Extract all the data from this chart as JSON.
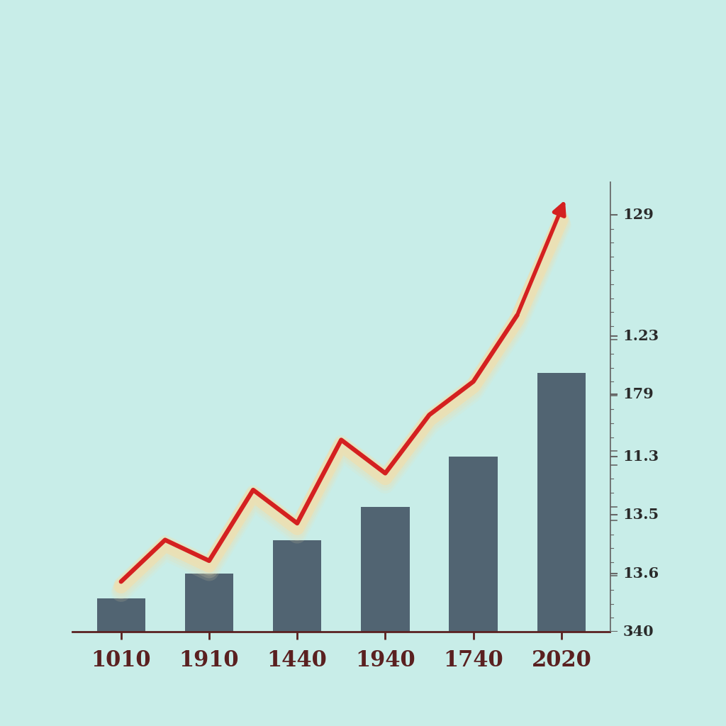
{
  "categories": [
    "1010",
    "1910",
    "1440",
    "1940",
    "1740",
    "2020"
  ],
  "bar_heights": [
    0.08,
    0.14,
    0.22,
    0.3,
    0.42,
    0.62
  ],
  "bar_color": "#4d606e",
  "line_x": [
    0,
    0.5,
    1,
    1.5,
    2,
    2.5,
    3,
    3.5,
    4,
    4.5,
    5
  ],
  "line_y": [
    0.12,
    0.22,
    0.17,
    0.34,
    0.26,
    0.46,
    0.38,
    0.52,
    0.6,
    0.76,
    1.0
  ],
  "line_color": "#d42020",
  "shadow_color": "#f0e0b0",
  "background_color": "#c8ede8",
  "axis_color": "#5a2020",
  "tick_color": "#666666",
  "ytick_labels": [
    "340",
    "13.6",
    "13.5",
    "11.3",
    "179",
    "1.23",
    "129"
  ],
  "ytick_positions": [
    0.0,
    0.14,
    0.28,
    0.42,
    0.57,
    0.71,
    1.0
  ],
  "xticklabel_color": "#5a2020",
  "figure_size": [
    10.24,
    10.24
  ],
  "dpi": 100
}
